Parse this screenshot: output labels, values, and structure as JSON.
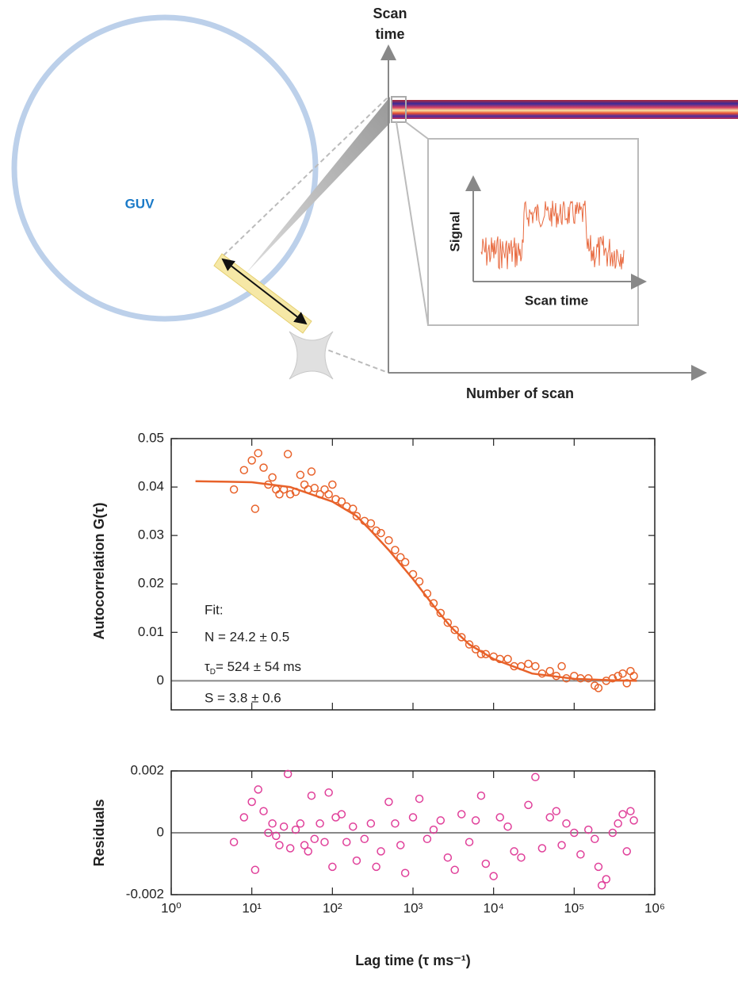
{
  "diagram": {
    "scan_time_axis": [
      "Scan",
      "time"
    ],
    "guv": "GUV",
    "inset_y": "Signal",
    "inset_x": "Scan time",
    "number_of_scan": "Number of scan"
  },
  "chart_data": [
    {
      "type": "scatter",
      "xscale": "log",
      "xlim": [
        1,
        1000000
      ],
      "ylim": [
        -0.006,
        0.05
      ],
      "yticks": [
        0,
        0.01,
        0.02,
        0.03,
        0.04,
        0.05
      ],
      "ylabel": "Autocorrelation G(τ)",
      "annotations": [
        "Fit:",
        "N = 24.2 ± 0.5",
        {
          "symbol": "τ",
          "subscript": "D",
          "text": "= 524 ± 54 ms"
        },
        "S = 3.8 ± 0.6"
      ],
      "series": [
        {
          "style": "markers",
          "color": "#e8622a",
          "x": [
            6,
            8,
            10,
            11,
            12,
            14,
            16,
            18,
            20,
            22,
            25,
            28,
            30,
            35,
            40,
            45,
            50,
            55,
            60,
            70,
            80,
            90,
            100,
            110,
            130,
            150,
            180,
            200,
            250,
            300,
            350,
            400,
            500,
            600,
            700,
            800,
            1000,
            1200,
            1500,
            1800,
            2200,
            2700,
            3300,
            4000,
            5000,
            6000,
            7000,
            8000,
            10000,
            12000,
            15000,
            18000,
            22000,
            27000,
            33000,
            40000,
            50000,
            60000,
            70000,
            80000,
            100000,
            120000,
            150000,
            180000,
            200000,
            250000,
            300000,
            350000,
            400000,
            450000,
            500000,
            550000
          ],
          "values": [
            0.0395,
            0.0435,
            0.0455,
            0.0355,
            0.047,
            0.044,
            0.0405,
            0.042,
            0.0395,
            0.0385,
            0.0395,
            0.0468,
            0.0385,
            0.039,
            0.0425,
            0.0405,
            0.0395,
            0.0432,
            0.0398,
            0.0385,
            0.0395,
            0.0385,
            0.0405,
            0.0375,
            0.037,
            0.036,
            0.0355,
            0.034,
            0.033,
            0.0325,
            0.031,
            0.0305,
            0.029,
            0.027,
            0.0255,
            0.0245,
            0.022,
            0.0205,
            0.018,
            0.016,
            0.014,
            0.012,
            0.0105,
            0.009,
            0.0075,
            0.0065,
            0.0055,
            0.0055,
            0.005,
            0.0045,
            0.0045,
            0.003,
            0.003,
            0.0035,
            0.003,
            0.0015,
            0.002,
            0.001,
            0.003,
            0.0005,
            0.001,
            0.0005,
            0.0005,
            -0.001,
            -0.0015,
            0,
            0.0005,
            0.001,
            0.0015,
            -0.0005,
            0.002,
            0.001
          ]
        },
        {
          "style": "line",
          "color": "#e8622a",
          "x": [
            2,
            5,
            10,
            30,
            100,
            200,
            300,
            500,
            1000,
            2000,
            3000,
            5000,
            10000,
            30000,
            100000,
            300000,
            600000
          ],
          "values": [
            0.0412,
            0.0411,
            0.041,
            0.04,
            0.037,
            0.034,
            0.031,
            0.027,
            0.021,
            0.0145,
            0.011,
            0.0075,
            0.0045,
            0.0015,
            0.0004,
            0.0001,
            0
          ]
        }
      ]
    },
    {
      "type": "scatter",
      "xscale": "log",
      "xlim": [
        1,
        1000000
      ],
      "ylim": [
        -0.002,
        0.002
      ],
      "xticks": [
        {
          "value": 1,
          "label": "10⁰"
        },
        {
          "value": 10,
          "label": "10¹"
        },
        {
          "value": 100,
          "label": "10²"
        },
        {
          "value": 1000,
          "label": "10³"
        },
        {
          "value": 10000,
          "label": "10⁴"
        },
        {
          "value": 100000,
          "label": "10⁵"
        },
        {
          "value": 1000000,
          "label": "10⁶"
        }
      ],
      "yticks": [
        -0.002,
        0,
        0.002
      ],
      "ylabel": "Residuals",
      "xlabel": "Lag time (τ ms⁻¹)",
      "series": [
        {
          "style": "markers",
          "color": "#e0409a",
          "x": [
            6,
            8,
            10,
            11,
            12,
            14,
            16,
            18,
            20,
            22,
            25,
            28,
            30,
            35,
            40,
            45,
            50,
            55,
            60,
            70,
            80,
            90,
            100,
            110,
            130,
            150,
            180,
            200,
            250,
            300,
            350,
            400,
            500,
            600,
            700,
            800,
            1000,
            1200,
            1500,
            1800,
            2200,
            2700,
            3300,
            4000,
            5000,
            6000,
            7000,
            8000,
            10000,
            12000,
            15000,
            18000,
            22000,
            27000,
            33000,
            40000,
            50000,
            60000,
            70000,
            80000,
            100000,
            120000,
            150000,
            180000,
            200000,
            220000,
            250000,
            300000,
            350000,
            400000,
            450000,
            500000,
            550000
          ],
          "values": [
            -0.0003,
            0.0005,
            0.001,
            -0.0012,
            0.0014,
            0.0007,
            0,
            0.0003,
            -0.0001,
            -0.0004,
            0.0002,
            0.0019,
            -0.0005,
            0.0001,
            0.0003,
            -0.0004,
            -0.0006,
            0.0012,
            -0.0002,
            0.0003,
            -0.0003,
            0.0013,
            -0.0011,
            0.0005,
            0.0006,
            -0.0003,
            0.0002,
            -0.0009,
            -0.0002,
            0.0003,
            -0.0011,
            -0.0006,
            0.001,
            0.0003,
            -0.0004,
            -0.0013,
            0.0005,
            0.0011,
            -0.0002,
            0.0001,
            0.0004,
            -0.0008,
            -0.0012,
            0.0006,
            -0.0003,
            0.0004,
            0.0012,
            -0.001,
            -0.0014,
            0.0005,
            0.0002,
            -0.0006,
            -0.0008,
            0.0009,
            0.0018,
            -0.0005,
            0.0005,
            0.0007,
            -0.0004,
            0.0003,
            0,
            -0.0007,
            0.0001,
            -0.0002,
            -0.0011,
            -0.0017,
            -0.0015,
            0,
            0.0003,
            0.0006,
            -0.0006,
            0.0007,
            0.0004
          ]
        }
      ]
    }
  ]
}
